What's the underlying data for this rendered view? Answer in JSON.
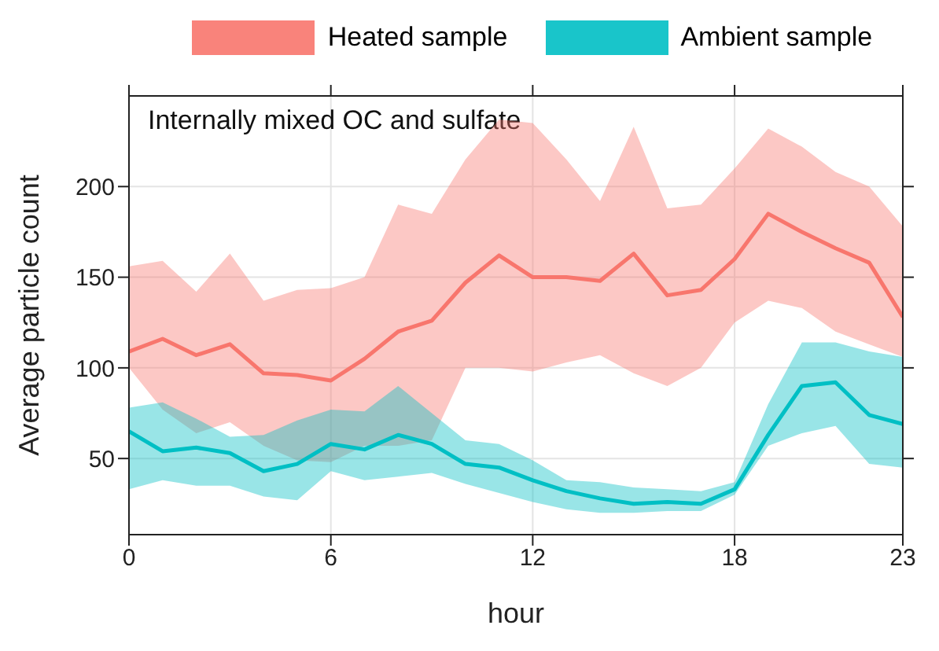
{
  "chart_data": {
    "type": "line",
    "title": "Internally mixed OC and sulfate",
    "xlabel": "hour",
    "ylabel": "Average particle count",
    "x": [
      0,
      1,
      2,
      3,
      4,
      5,
      6,
      7,
      8,
      9,
      10,
      11,
      12,
      13,
      14,
      15,
      16,
      17,
      18,
      19,
      20,
      21,
      22,
      23
    ],
    "series": [
      {
        "name": "Heated sample",
        "color": "#f8766d",
        "values": [
          109,
          116,
          107,
          113,
          97,
          96,
          93,
          105,
          120,
          126,
          147,
          162,
          150,
          150,
          148,
          163,
          140,
          143,
          160,
          185,
          175,
          166,
          158,
          128
        ],
        "lower": [
          100,
          77,
          64,
          70,
          57,
          49,
          48,
          57,
          57,
          60,
          100,
          100,
          98,
          103,
          107,
          97,
          90,
          100,
          125,
          137,
          133,
          120,
          113,
          106
        ],
        "upper": [
          156,
          159,
          142,
          163,
          137,
          143,
          144,
          150,
          190,
          185,
          215,
          237,
          235,
          215,
          192,
          233,
          188,
          190,
          210,
          232,
          222,
          208,
          200,
          178
        ]
      },
      {
        "name": "Ambient sample",
        "color": "#00bfc4",
        "values": [
          65,
          54,
          56,
          53,
          43,
          47,
          58,
          55,
          63,
          58,
          47,
          45,
          38,
          32,
          28,
          25,
          26,
          25,
          33,
          63,
          90,
          92,
          74,
          69
        ],
        "lower": [
          33,
          38,
          35,
          35,
          29,
          27,
          43,
          38,
          40,
          42,
          36,
          31,
          26,
          22,
          20,
          20,
          21,
          21,
          30,
          57,
          64,
          68,
          47,
          45
        ],
        "upper": [
          78,
          81,
          72,
          62,
          63,
          71,
          77,
          76,
          90,
          75,
          60,
          58,
          49,
          38,
          37,
          34,
          33,
          32,
          37,
          80,
          114,
          114,
          109,
          106
        ]
      }
    ],
    "xlim": [
      0,
      23
    ],
    "xticks": [
      0,
      6,
      12,
      18,
      23
    ],
    "ylim": [
      8,
      250
    ],
    "yticks": [
      50,
      100,
      150,
      200
    ],
    "grid": true,
    "legend": "top",
    "marker": "none",
    "line_style": "solid"
  }
}
